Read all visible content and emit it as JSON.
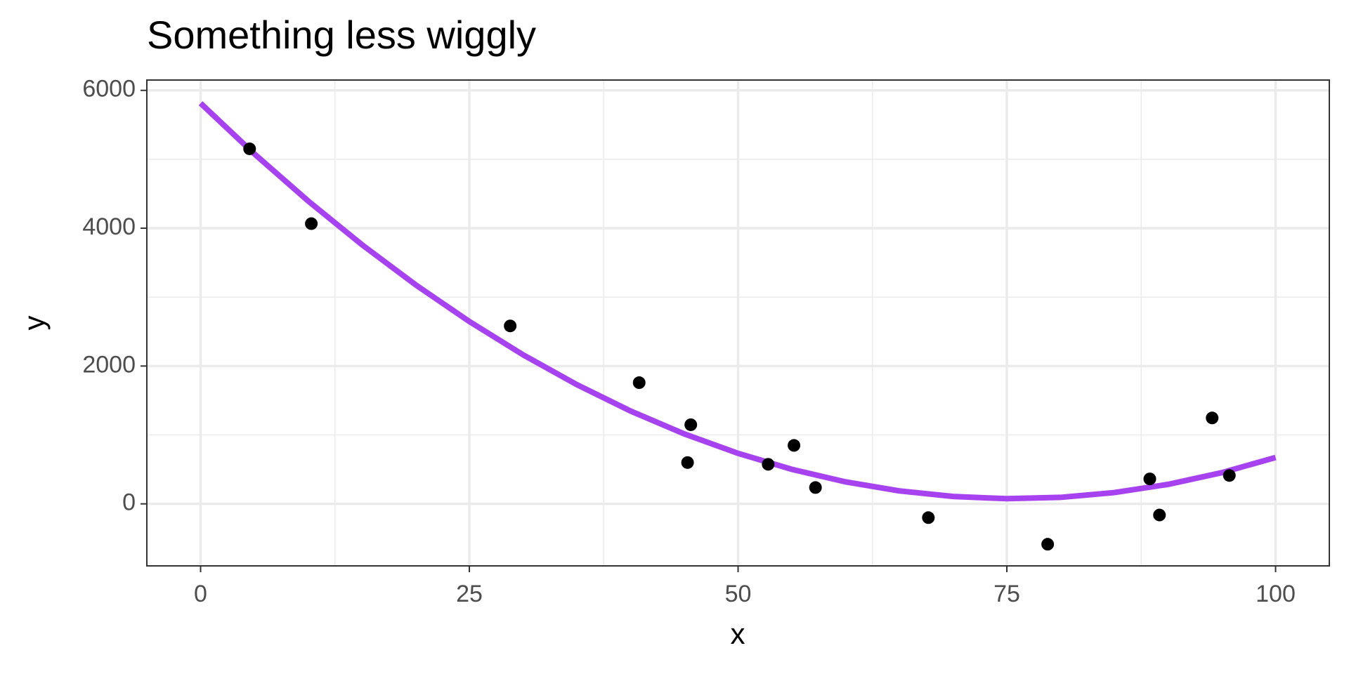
{
  "chart_data": {
    "type": "scatter",
    "title": "Something less wiggly",
    "x_label": "x",
    "y_label": "y",
    "xlim": [
      -5,
      105
    ],
    "ylim": [
      -900,
      6150
    ],
    "xticks": [
      0,
      25,
      50,
      75,
      100
    ],
    "yticks": [
      0,
      2000,
      4000,
      6000
    ],
    "grid": true,
    "series": [
      {
        "type": "scatter",
        "color": "#000000",
        "x": [
          4.56,
          10.3,
          28.8,
          40.8,
          45.6,
          45.3,
          52.8,
          55.2,
          57.2,
          67.7,
          78.8,
          88.3,
          89.2,
          94.1,
          95.7
        ],
        "values": [
          5152,
          4066,
          2582,
          1759,
          1148,
          599,
          574,
          848,
          237,
          -200,
          -586,
          362,
          -162,
          1247,
          412
        ]
      },
      {
        "type": "line",
        "color": "#a742f0",
        "x": [
          0,
          5,
          10,
          15,
          20,
          25,
          30,
          35,
          40,
          45,
          50,
          55,
          60,
          65,
          70,
          75,
          80,
          85,
          90,
          95,
          100
        ],
        "values": [
          5813,
          5079,
          4396,
          3762,
          3179,
          2646,
          2163,
          1730,
          1347,
          1015,
          733,
          501,
          319,
          188,
          107,
          75,
          94,
          164,
          283,
          453,
          673
        ]
      }
    ]
  }
}
